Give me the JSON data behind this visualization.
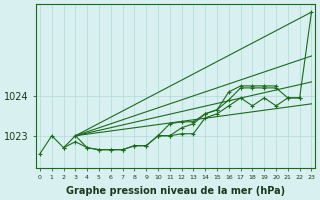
{
  "bg_color": "#d8f0f0",
  "grid_color": "#b0d8d8",
  "line_color": "#1a6b1a",
  "xlabel": "Graphe pression niveau de la mer (hPa)",
  "xlabel_fontsize": 7.0,
  "xtick_labels": [
    "0",
    "1",
    "2",
    "3",
    "4",
    "5",
    "6",
    "7",
    "8",
    "9",
    "10",
    "11",
    "12",
    "13",
    "14",
    "15",
    "16",
    "17",
    "18",
    "19",
    "20",
    "21",
    "22",
    "23"
  ],
  "ytick_vals": [
    1023,
    1024
  ],
  "ylim": [
    1022.2,
    1026.3
  ],
  "xlim": [
    -0.3,
    23.3
  ],
  "straight_lines": [
    {
      "x": [
        3,
        23
      ],
      "y": [
        1023.0,
        1026.1
      ]
    },
    {
      "x": [
        3,
        23
      ],
      "y": [
        1023.0,
        1025.0
      ]
    },
    {
      "x": [
        3,
        23
      ],
      "y": [
        1023.0,
        1023.8
      ]
    },
    {
      "x": [
        3,
        23
      ],
      "y": [
        1023.0,
        1024.35
      ]
    }
  ],
  "marker_series": [
    {
      "x": [
        0,
        1,
        2,
        3,
        4,
        5,
        6,
        7,
        8,
        9,
        10,
        11,
        12,
        13,
        14,
        15,
        16,
        17,
        18,
        19,
        20,
        21,
        22,
        23
      ],
      "y": [
        1022.55,
        1023.0,
        1022.7,
        1023.0,
        1022.7,
        1022.65,
        1022.65,
        1022.65,
        1022.75,
        1022.75,
        1023.0,
        1023.0,
        1023.05,
        1023.05,
        1023.45,
        1023.55,
        1023.75,
        1023.95,
        1023.75,
        1023.95,
        1023.75,
        1023.95,
        1023.95,
        1026.1
      ]
    },
    {
      "x": [
        2,
        3,
        4,
        5,
        6,
        7,
        8,
        9,
        10,
        11,
        12,
        13,
        14,
        15,
        16,
        17,
        18,
        19,
        20
      ],
      "y": [
        1022.7,
        1022.85,
        1022.7,
        1022.65,
        1022.65,
        1022.65,
        1022.75,
        1022.75,
        1023.0,
        1023.3,
        1023.35,
        1023.35,
        1023.55,
        1023.65,
        1024.1,
        1024.25,
        1024.25,
        1024.25,
        1024.25
      ]
    },
    {
      "x": [
        10,
        11,
        12,
        13,
        14,
        15,
        16,
        17,
        18,
        19,
        20,
        21,
        22
      ],
      "y": [
        1023.0,
        1023.0,
        1023.2,
        1023.3,
        1023.55,
        1023.65,
        1023.9,
        1024.2,
        1024.2,
        1024.2,
        1024.2,
        1023.95,
        1023.95
      ]
    }
  ]
}
